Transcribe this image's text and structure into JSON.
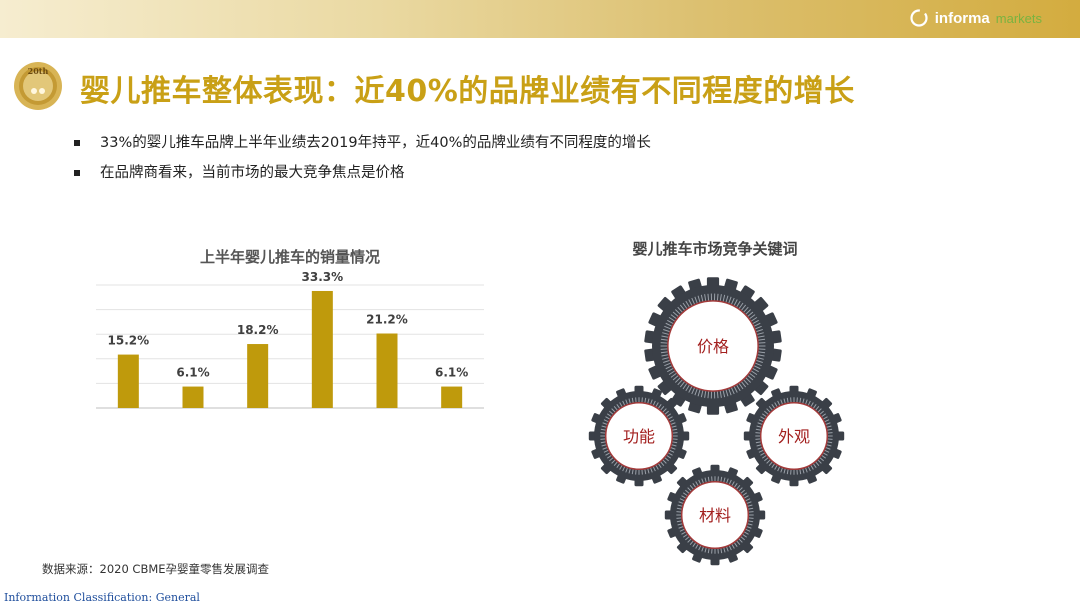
{
  "header": {
    "logo_text": "informa",
    "logo_subtext": "markets",
    "badge_text": "20th"
  },
  "slide": {
    "title": "婴儿推车整体表现：近40%的品牌业绩有不同程度的增长",
    "bullets": [
      "33%的婴儿推车品牌上半年业绩去2019年持平，近40%的品牌业绩有不同程度的增长",
      "在品牌商看来，当前市场的最大竞争焦点是价格"
    ]
  },
  "chart_data": {
    "type": "bar",
    "title": "上半年婴儿推车的销量情况",
    "categories": [
      "",
      "",
      "",
      "",
      "",
      ""
    ],
    "values": [
      15.2,
      6.1,
      18.2,
      33.3,
      21.2,
      6.1
    ],
    "data_labels": [
      "15.2%",
      "6.1%",
      "18.2%",
      "33.3%",
      "21.2%",
      "6.1%"
    ],
    "ylim": [
      0,
      35
    ],
    "grid": true,
    "bar_color": "#bf9a0c"
  },
  "keywords": {
    "title": "婴儿推车市场竞争关键词",
    "items": [
      "价格",
      "功能",
      "外观",
      "材料"
    ],
    "text_color": "#a3201f",
    "gear_color": "#3a3f47"
  },
  "footer": {
    "source": "数据来源：2020 CBME孕婴童零售发展调查",
    "classification": "Information Classification: General"
  }
}
